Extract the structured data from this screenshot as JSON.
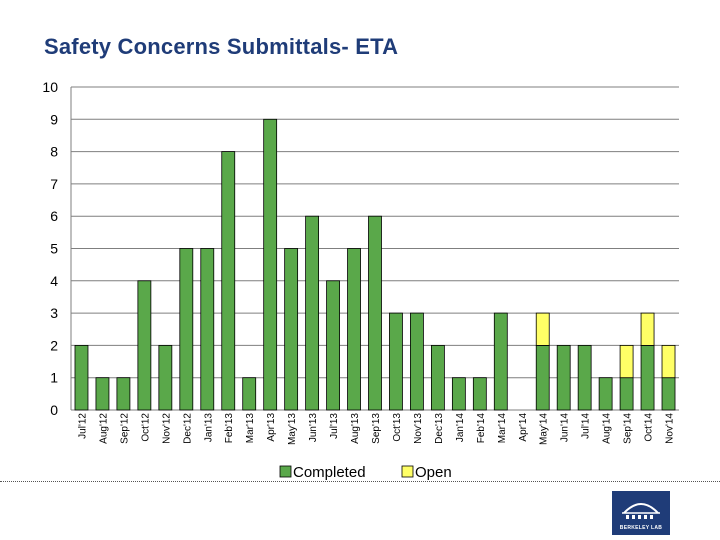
{
  "slide": {
    "title": "Safety Concerns Submittals- ETA",
    "logo_text": "BERKELEY LAB"
  },
  "colors": {
    "completed": "#5aa84a",
    "open": "#ffff66",
    "grid": "#7f7f7f",
    "bar_stroke": "#000000"
  },
  "chart_data": {
    "type": "bar",
    "stacked": true,
    "title": "Safety Concerns Submittals- ETA",
    "xlabel": "",
    "ylabel": "",
    "ylim": [
      0,
      10
    ],
    "yticks": [
      0,
      1,
      2,
      3,
      4,
      5,
      6,
      7,
      8,
      9,
      10
    ],
    "grid": true,
    "legend_position": "bottom",
    "categories": [
      "Jul'12",
      "Aug'12",
      "Sep'12",
      "Oct'12",
      "Nov'12",
      "Dec'12",
      "Jan'13",
      "Feb'13",
      "Mar'13",
      "Apr'13",
      "May'13",
      "Jun'13",
      "Jul'13",
      "Aug'13",
      "Sep'13",
      "Oct'13",
      "Nov'13",
      "Dec'13",
      "Jan'14",
      "Feb'14",
      "Mar'14",
      "Apr'14",
      "May'14",
      "Jun'14",
      "Jul'14",
      "Aug'14",
      "Sep'14",
      "Oct'14",
      "Nov'14"
    ],
    "series": [
      {
        "name": "Completed",
        "values": [
          2,
          1,
          1,
          4,
          2,
          5,
          5,
          8,
          1,
          9,
          5,
          6,
          4,
          5,
          6,
          3,
          3,
          2,
          1,
          1,
          3,
          0,
          2,
          2,
          2,
          1,
          1,
          2,
          1
        ]
      },
      {
        "name": "Open",
        "values": [
          0,
          0,
          0,
          0,
          0,
          0,
          0,
          0,
          0,
          0,
          0,
          0,
          0,
          0,
          0,
          0,
          0,
          0,
          0,
          0,
          0,
          0,
          1,
          0,
          0,
          0,
          1,
          1,
          1
        ]
      }
    ]
  }
}
